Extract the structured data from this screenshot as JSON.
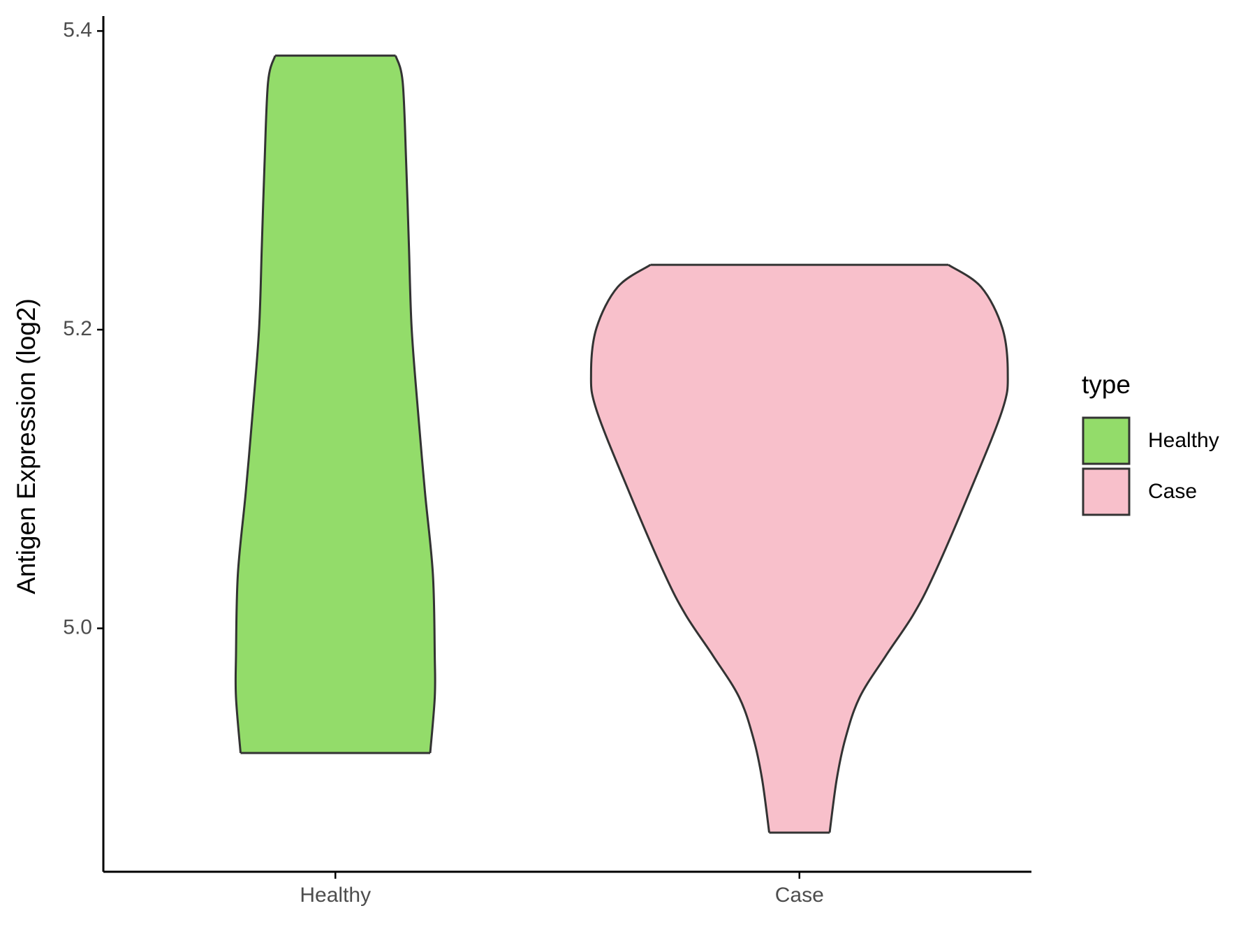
{
  "chart_data": {
    "type": "violin",
    "y_label": "Antigen Expression (log2)",
    "categories": [
      "Healthy",
      "Case"
    ],
    "legend_title": "type",
    "legend_position": "right",
    "series": [
      {
        "name": "Healthy",
        "color": "#93dc6a",
        "values": [
          5.3835,
          5.3659,
          5.311,
          5.256,
          5.2011,
          5.1462,
          5.0912,
          5.0363,
          4.9813,
          4.9538,
          4.9165
        ],
        "widths": [
          0.289,
          0.323,
          0.34,
          0.353,
          0.366,
          0.396,
          0.43,
          0.468,
          0.477,
          0.477,
          0.455
        ]
      },
      {
        "name": "Case",
        "color": "#f8c0cb",
        "values": [
          5.2434,
          5.2286,
          5.2011,
          5.1709,
          5.1462,
          5.0912,
          5.0363,
          5.0088,
          4.9813,
          4.9538,
          4.9264,
          4.8989,
          4.8632
        ],
        "widths": [
          0.715,
          0.872,
          0.974,
          1.0,
          0.974,
          0.817,
          0.647,
          0.545,
          0.413,
          0.289,
          0.221,
          0.179,
          0.145
        ]
      }
    ],
    "ylim": [
      4.837,
      5.41
    ],
    "yticks": [
      {
        "value": 5.0,
        "label": "5.0"
      },
      5.2,
      5.4
    ]
  }
}
